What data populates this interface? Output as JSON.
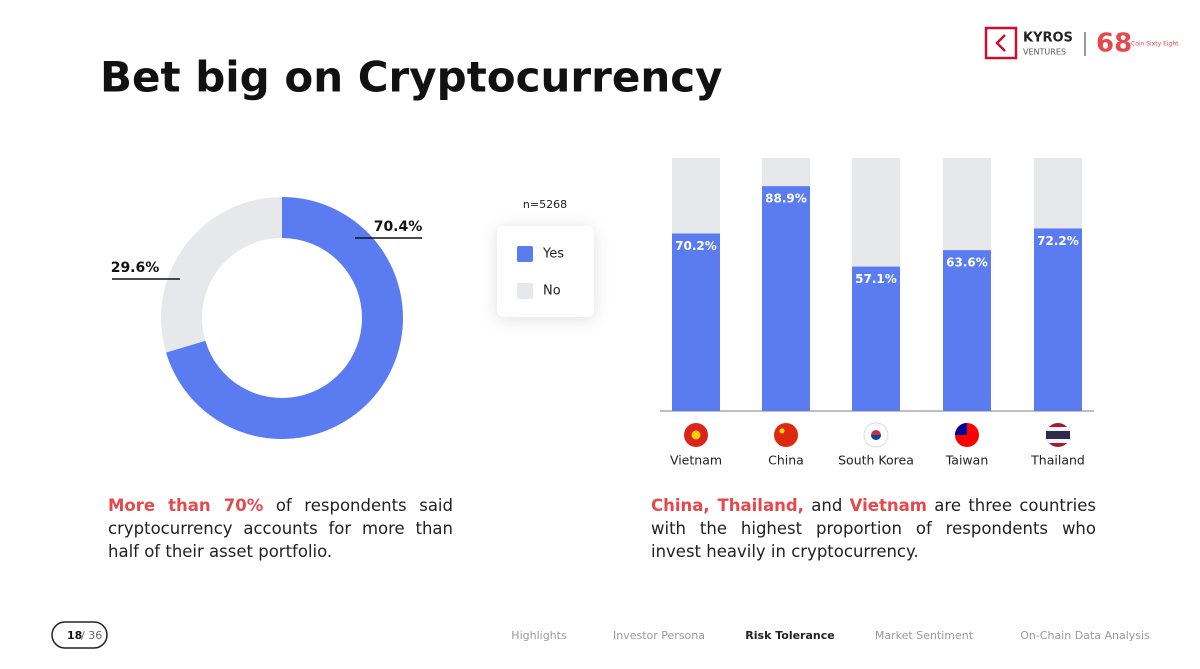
{
  "title": "Bet big on Cryptocurrency",
  "logo": {
    "name": "KYROS",
    "sub": "VENTURES",
    "partner_mark": "68",
    "partner": "Coin Sixty Eight"
  },
  "chart_data": [
    {
      "type": "pie",
      "legend_title": "n=5268",
      "categories": [
        "Yes",
        "No"
      ],
      "values": [
        70.4,
        29.6
      ],
      "value_labels": [
        "70.4%",
        "29.6%"
      ],
      "colors": [
        "#5b7cf0",
        "#e6e8ec"
      ]
    },
    {
      "type": "bar",
      "stacked": true,
      "categories": [
        "Vietnam",
        "China",
        "South Korea",
        "Taiwan",
        "Thailand"
      ],
      "ylim": [
        0,
        100
      ],
      "series": [
        {
          "name": "Yes",
          "color": "#5b7cf0",
          "values": [
            70.2,
            88.9,
            57.1,
            63.6,
            72.2
          ],
          "value_labels": [
            "70.2%",
            "88.9%",
            "57.1%",
            "63.6%",
            "72.2%"
          ]
        },
        {
          "name": "No",
          "color": "#e6e8ec",
          "values": [
            29.8,
            11.1,
            42.9,
            36.4,
            27.8
          ]
        }
      ]
    }
  ],
  "notes": [
    [
      "More than 70%",
      " of respondents said cryptocurrency accounts for more than half of their asset portfolio."
    ],
    [
      "China, Thailand,",
      " and ",
      "Vietnam",
      " are three countries with the highest proportion of respondents who invest heavily in cryptocurrency."
    ]
  ],
  "footer": {
    "page_current": "18",
    "page_total": "/ 36",
    "nav": [
      "Highlights",
      "Investor Persona",
      "Risk Tolerance",
      "Market Sentiment",
      "On-Chain Data Analysis"
    ],
    "active": 2
  }
}
